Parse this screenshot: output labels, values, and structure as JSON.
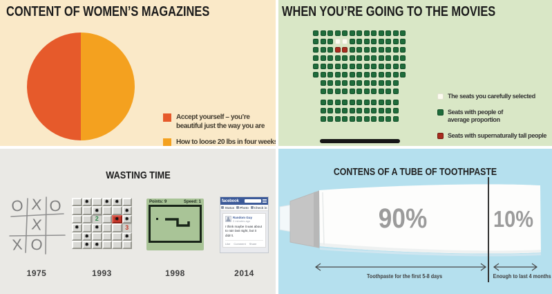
{
  "panels": {
    "magazines": {
      "title": "CONTENT OF WOMEN’S MAGAZINES",
      "legend": [
        {
          "label": "Accept yourself – you’re beautiful just the way you are",
          "color": "#E65A2B"
        },
        {
          "label": "How to loose 20 lbs in four weeks",
          "color": "#F4A11F"
        }
      ]
    },
    "movies": {
      "title": "WHEN YOU’RE GOING TO THE MOVIES",
      "seat_colors": {
        "green": "#1F6C3B",
        "white": "#FCFBEF",
        "red": "#A82C1F"
      },
      "seat_rows": [
        {
          "offset": 0,
          "seats": "GGGGGGGGGGGGG"
        },
        {
          "offset": 0,
          "seats": "GGGWWGGGGGGGG"
        },
        {
          "offset": 0,
          "seats": "GGGRRGGGGGGGG"
        },
        {
          "offset": 0,
          "seats": "GGGGGGGGGGGGG"
        },
        {
          "offset": 0,
          "seats": "GGGGGGGGGGGGG"
        },
        {
          "offset": 0,
          "seats": "GGGGGGGGGGGGG"
        },
        {
          "offset": 1,
          "seats": "GGGGGGGGGGG"
        },
        {
          "offset": 1,
          "seats": "GGGGGGGGGGG"
        },
        {
          "offset": 1,
          "seats": "GGGGGGGGGGG",
          "aisle_before": true
        },
        {
          "offset": 1,
          "seats": "GGGGGGGGGGG"
        },
        {
          "offset": 1,
          "seats": "GGGGGGGGGGG"
        }
      ],
      "legend": [
        {
          "swatch": "white",
          "label": "The seats you carefully selected"
        },
        {
          "swatch": "green",
          "label": "Seats with people of average proportion"
        },
        {
          "swatch": "red",
          "label": "Seats with supernaturally tall people"
        }
      ]
    },
    "wasting_time": {
      "title": "WASTING TIME",
      "items": [
        {
          "year": "1975"
        },
        {
          "year": "1993"
        },
        {
          "year": "1998"
        },
        {
          "year": "2014"
        }
      ],
      "tictactoe_cells": [
        "O",
        "X",
        "O",
        "",
        "X",
        "",
        "X",
        "O",
        ""
      ],
      "minesweeper_grid": [
        ".B.BB.",
        "..B..B",
        "..2.RB",
        "B.B..3",
        ".B...B",
        ".BB..."
      ],
      "snake": {
        "points": "Points: 9",
        "speed": "Speed: 1"
      },
      "facebook": {
        "logo": "facebook",
        "toolbar": [
          "Status",
          "Photo",
          "Check in"
        ],
        "author": "Random Guy",
        "time": "2 minutes ago",
        "text": "I think maybe it was about to rain last night, but it didn’t.",
        "actions": [
          "Like",
          "Comment",
          "Share"
        ]
      }
    },
    "toothpaste": {
      "title": "CONTENS OF A TUBE OF TOOTHPASTE",
      "percent_left": "90%",
      "percent_right": "10%",
      "label_left": "Toothpaste for the first 5-8 days",
      "label_right": "Enough to last 4 months"
    }
  },
  "chart_data": [
    {
      "type": "pie",
      "title": "CONTENT OF WOMEN’S MAGAZINES",
      "labels": [
        "Accept yourself – you’re beautiful just the way you are",
        "How to loose 20 lbs in four weeks"
      ],
      "values": [
        50,
        50
      ],
      "colors": [
        "#E65A2B",
        "#F4A11F"
      ],
      "legend_position": "right"
    },
    {
      "type": "heatmap",
      "title": "WHEN YOU’RE GOING TO THE MOVIES",
      "categories": [
        "The seats you carefully selected",
        "Seats with people of average proportion",
        "Seats with supernaturally tall people"
      ],
      "values": [
        2,
        129,
        2
      ],
      "colors": [
        "#FCFBEF",
        "#1F6C3B",
        "#A82C1F"
      ],
      "legend_position": "right"
    },
    {
      "type": "table",
      "title": "WASTING TIME",
      "categories": [
        "1975",
        "1993",
        "1998",
        "2014"
      ],
      "values": [
        "tic-tac-toe",
        "minesweeper",
        "snake",
        "facebook"
      ]
    },
    {
      "type": "bar",
      "title": "CONTENS OF A TUBE OF TOOTHPASTE",
      "categories": [
        "Toothpaste for the first 5-8 days",
        "Enough to last 4 months"
      ],
      "values": [
        90,
        10
      ],
      "unit": "%"
    }
  ]
}
